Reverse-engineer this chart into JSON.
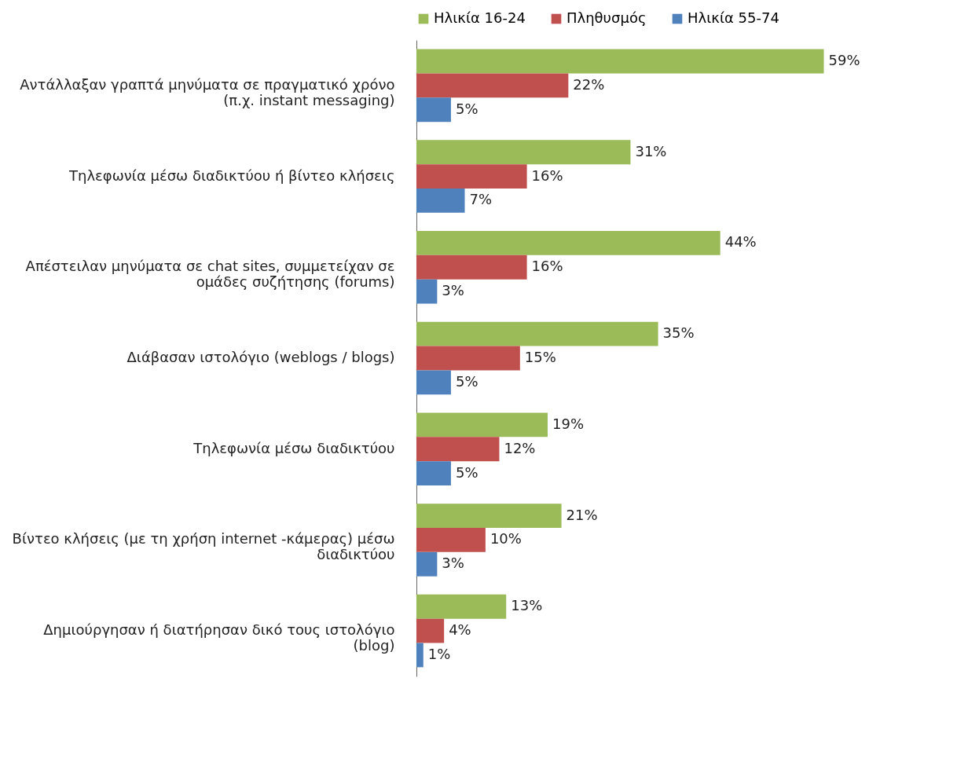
{
  "chart_data": {
    "type": "bar",
    "orientation": "horizontal",
    "legend": "top",
    "grid": false,
    "categories": [
      "Αντάλλαξαν γραπτά μηνύματα σε πραγματικό χρόνο (π.χ. instant messaging)",
      "Τηλεφωνία μέσω διαδικτύου ή βίντεο κλήσεις",
      "Απέστειλαν μηνύματα σε chat sites, συμμετείχαν σε ομάδες συζήτησης (forums)",
      "Διάβασαν ιστολόγιο (weblogs / blogs)",
      "Τηλεφωνία μέσω διαδικτύου",
      "Βίντεο κλήσεις (με τη χρήση internet -κάμερας) μέσω διαδικτύου",
      "Δημιούργησαν ή διατήρησαν δικό τους ιστολόγιο (blog)"
    ],
    "series": [
      {
        "name": "Ηλικία 16-24",
        "color": "#9bbb59",
        "values": [
          59,
          31,
          44,
          35,
          19,
          21,
          13
        ],
        "value_labels": [
          "59%",
          "31%",
          "44%",
          "35%",
          "19%",
          "21%",
          "13%"
        ]
      },
      {
        "name": "Πληθυσμός",
        "color": "#c0504d",
        "values": [
          22,
          16,
          16,
          15,
          12,
          10,
          4
        ],
        "value_labels": [
          "22%",
          "16%",
          "16%",
          "15%",
          "12%",
          "10%",
          "4%"
        ]
      },
      {
        "name": "Ηλικία 55-74",
        "color": "#4f81bd",
        "values": [
          5,
          7,
          3,
          5,
          5,
          3,
          1
        ],
        "value_labels": [
          "5%",
          "7%",
          "3%",
          "5%",
          "5%",
          "3%",
          "1%"
        ]
      }
    ]
  }
}
